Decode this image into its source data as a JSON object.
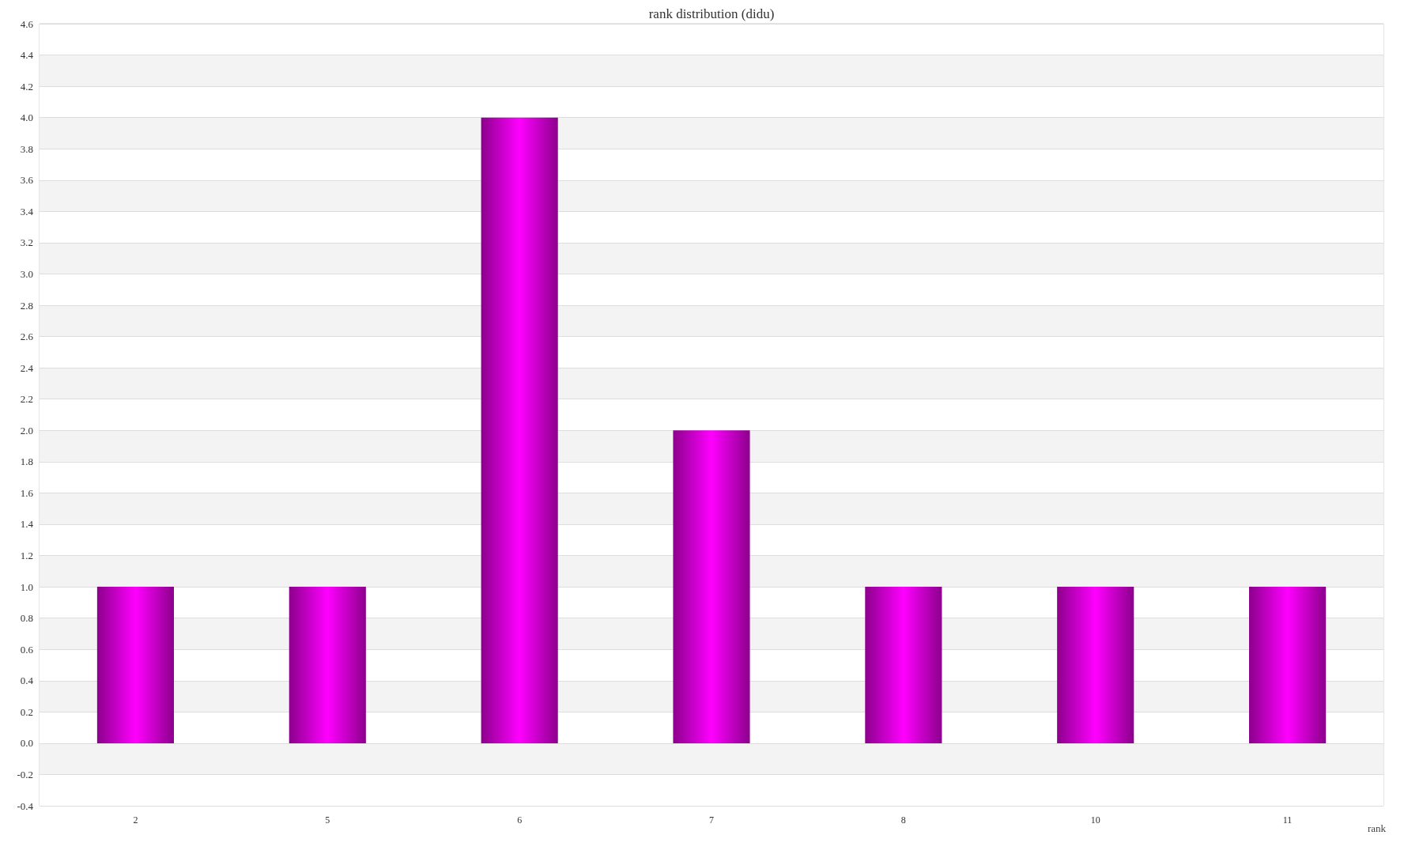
{
  "chart_data": {
    "type": "bar",
    "title": "rank distribution (didu)",
    "xlabel": "rank",
    "categories": [
      "2",
      "5",
      "6",
      "7",
      "8",
      "10",
      "11"
    ],
    "series": [
      {
        "color": "#ff00ff",
        "values": [
          1,
          1,
          4,
          2,
          1,
          1,
          1
        ]
      }
    ],
    "ylim": [
      -0.4,
      4.6
    ],
    "yticks": [
      {
        "value": -0.4,
        "label": "-0.4"
      },
      {
        "value": -0.2,
        "label": "-0.2"
      },
      {
        "value": 0,
        "label": "0.0"
      },
      {
        "value": 0.2,
        "label": "0.2"
      },
      {
        "value": 0.4,
        "label": "0.4"
      },
      {
        "value": 0.6,
        "label": "0.6"
      },
      {
        "value": 0.8,
        "label": "0.8"
      },
      {
        "value": 1,
        "label": "1.0"
      },
      {
        "value": 1.2,
        "label": "1.2"
      },
      {
        "value": 1.4,
        "label": "1.4"
      },
      {
        "value": 1.6,
        "label": "1.6"
      },
      {
        "value": 1.8,
        "label": "1.8"
      },
      {
        "value": 2,
        "label": "2.0"
      },
      {
        "value": 2.2,
        "label": "2.2"
      },
      {
        "value": 2.4,
        "label": "2.4"
      },
      {
        "value": 2.6,
        "label": "2.6"
      },
      {
        "value": 2.8,
        "label": "2.8"
      },
      {
        "value": 3,
        "label": "3.0"
      },
      {
        "value": 3.2,
        "label": "3.2"
      },
      {
        "value": 3.4,
        "label": "3.4"
      },
      {
        "value": 3.6,
        "label": "3.6"
      },
      {
        "value": 3.8,
        "label": "3.8"
      },
      {
        "value": 4,
        "label": "4.0"
      },
      {
        "value": 4.2,
        "label": "4.2"
      },
      {
        "value": 4.4,
        "label": "4.4"
      },
      {
        "value": 4.6,
        "label": "4.6"
      }
    ],
    "grid": "y"
  }
}
